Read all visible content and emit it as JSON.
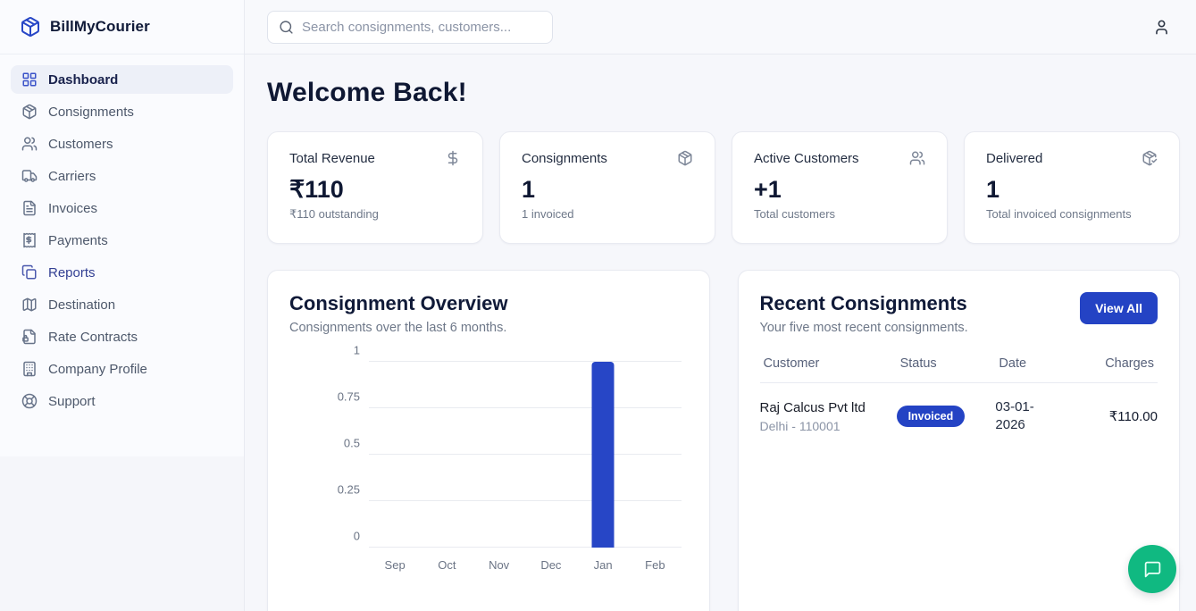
{
  "app": {
    "name": "BillMyCourier",
    "logo_icon": "package-icon"
  },
  "sidebar": {
    "items": [
      {
        "label": "Dashboard",
        "icon": "dashboard-grid-icon",
        "active": true,
        "highlighted": false
      },
      {
        "label": "Consignments",
        "icon": "package-icon",
        "active": false,
        "highlighted": false
      },
      {
        "label": "Customers",
        "icon": "users-icon",
        "active": false,
        "highlighted": false
      },
      {
        "label": "Carriers",
        "icon": "truck-icon",
        "active": false,
        "highlighted": false
      },
      {
        "label": "Invoices",
        "icon": "file-text-icon",
        "active": false,
        "highlighted": false
      },
      {
        "label": "Payments",
        "icon": "receipt-icon",
        "active": false,
        "highlighted": false
      },
      {
        "label": "Reports",
        "icon": "copy-icon",
        "active": false,
        "highlighted": true
      },
      {
        "label": "Destination",
        "icon": "map-icon",
        "active": false,
        "highlighted": false
      },
      {
        "label": "Rate Contracts",
        "icon": "file-lock-icon",
        "active": false,
        "highlighted": false
      },
      {
        "label": "Company Profile",
        "icon": "building-icon",
        "active": false,
        "highlighted": false
      },
      {
        "label": "Support",
        "icon": "lifebuoy-icon",
        "active": false,
        "highlighted": false
      }
    ]
  },
  "header": {
    "search": {
      "placeholder": "Search consignments, customers...",
      "icon": "search-icon"
    },
    "user_icon": "user-icon"
  },
  "main": {
    "title": "Welcome Back!",
    "stat_cards": [
      {
        "label": "Total Revenue",
        "icon": "dollar-icon",
        "value": "₹110",
        "sub": "₹110 outstanding"
      },
      {
        "label": "Consignments",
        "icon": "package-icon",
        "value": "1",
        "sub": "1 invoiced"
      },
      {
        "label": "Active Customers",
        "icon": "users-icon",
        "value": "+1",
        "sub": "Total customers"
      },
      {
        "label": "Delivered",
        "icon": "package-check-icon",
        "value": "1",
        "sub": "Total invoiced consignments"
      }
    ],
    "overview": {
      "title": "Consignment Overview",
      "subtitle": "Consignments over the last 6 months."
    },
    "recent": {
      "title": "Recent Consignments",
      "subtitle": "Your five most recent consignments.",
      "view_all_label": "View All",
      "columns": [
        "Customer",
        "Status",
        "Date",
        "Charges"
      ],
      "rows": [
        {
          "customer": "Raj Calcus Pvt ltd",
          "location": "Delhi - 110001",
          "status": "Invoiced",
          "date": "03-01-2026",
          "charges": "₹110.00"
        }
      ]
    }
  },
  "chart_data": {
    "type": "bar",
    "title": "Consignment Overview",
    "categories": [
      "Sep",
      "Oct",
      "Nov",
      "Dec",
      "Jan",
      "Feb"
    ],
    "values": [
      0,
      0,
      0,
      0,
      1,
      0
    ],
    "xlabel": "",
    "ylabel": "",
    "ylim": [
      0,
      1
    ],
    "yticks": [
      0,
      0.25,
      0.5,
      0.75,
      1
    ],
    "grid": true,
    "legend": false,
    "bar_color": "#2746c6"
  },
  "chat_button": {
    "icon": "message-square-icon"
  },
  "colors": {
    "accent": "#2443c4",
    "bar": "#2746c6",
    "chat_green": "#10b981",
    "heading": "#0f1833",
    "muted_text": "#6e7889",
    "border": "#e8eaf1",
    "page_bg": "#f6f7fb"
  }
}
